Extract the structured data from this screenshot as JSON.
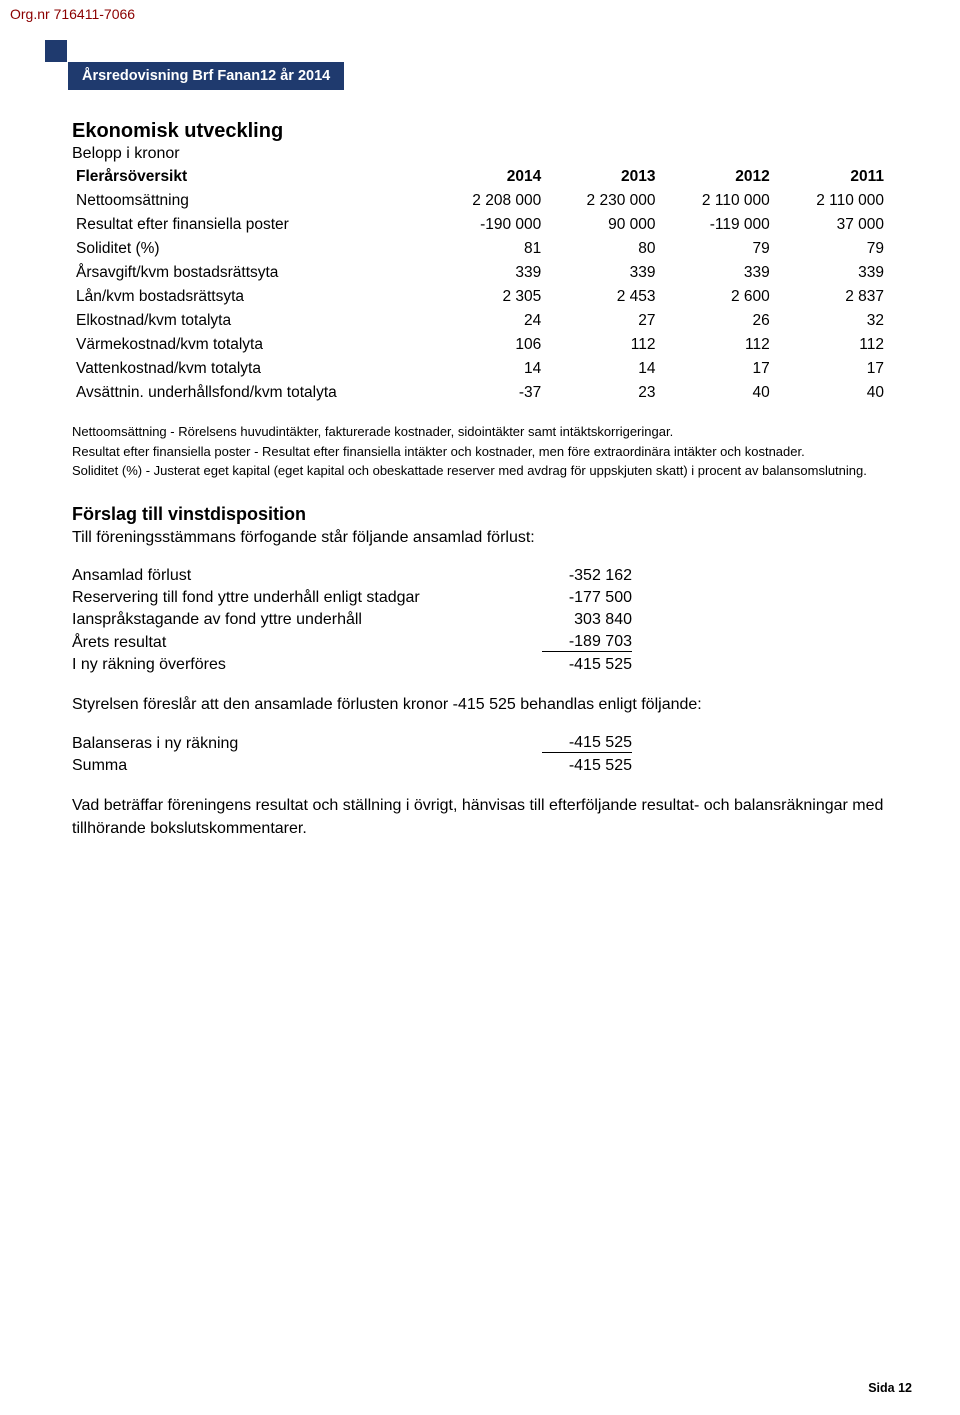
{
  "orgnr": "Org.nr 716411-7066",
  "header_title": "Årsredovisning Brf Fanan12 år 2014",
  "section1": {
    "title": "Ekonomisk utveckling",
    "subtitle": "Belopp i kronor",
    "table_title": "Flerårsöversikt",
    "years": [
      "2014",
      "2013",
      "2012",
      "2011"
    ],
    "rows": [
      {
        "label": "Nettoomsättning",
        "v": [
          "2 208 000",
          "2 230 000",
          "2 110 000",
          "2 110 000"
        ]
      },
      {
        "label": "Resultat efter finansiella poster",
        "v": [
          "-190 000",
          "90 000",
          "-119 000",
          "37 000"
        ]
      },
      {
        "label": "Soliditet (%)",
        "v": [
          "81",
          "80",
          "79",
          "79"
        ]
      },
      {
        "label": "Årsavgift/kvm bostadsrättsyta",
        "v": [
          "339",
          "339",
          "339",
          "339"
        ]
      },
      {
        "label": "Lån/kvm bostadsrättsyta",
        "v": [
          "2 305",
          "2 453",
          "2 600",
          "2 837"
        ]
      },
      {
        "label": "Elkostnad/kvm totalyta",
        "v": [
          "24",
          "27",
          "26",
          "32"
        ]
      },
      {
        "label": "Värmekostnad/kvm totalyta",
        "v": [
          "106",
          "112",
          "112",
          "112"
        ]
      },
      {
        "label": "Vattenkostnad/kvm totalyta",
        "v": [
          "14",
          "14",
          "17",
          "17"
        ]
      },
      {
        "label": "Avsättnin. underhållsfond/kvm totalyta",
        "v": [
          "-37",
          "23",
          "40",
          "40"
        ]
      }
    ]
  },
  "notes": [
    "Nettoomsättning - Rörelsens huvudintäkter, fakturerade kostnader, sidointäkter samt intäktskorrigeringar.",
    "Resultat efter finansiella poster - Resultat efter finansiella intäkter och kostnader, men före extraordinära intäkter och kostnader.",
    "Soliditet (%) - Justerat eget kapital (eget kapital och obeskattade reserver med avdrag för uppskjuten skatt) i procent av balansomslutning."
  ],
  "section2": {
    "title": "Förslag till vinstdisposition",
    "intro": "Till föreningsstämmans förfogande står följande ansamlad förlust:",
    "table1": [
      {
        "label": "Ansamlad förlust",
        "value": "-352 162",
        "underline": false
      },
      {
        "label": "Reservering till fond yttre underhåll enligt stadgar",
        "value": "-177 500",
        "underline": false,
        "wrap": true
      },
      {
        "label": "Ianspråkstagande av fond yttre underhåll",
        "value": "303 840",
        "underline": false
      },
      {
        "label": "Årets resultat",
        "value": "-189 703",
        "underline": true
      },
      {
        "label": "I ny räkning överföres",
        "value": "-415 525",
        "underline": false
      }
    ],
    "mid_text": "Styrelsen föreslår att den ansamlade förlusten kronor -415 525 behandlas enligt följande:",
    "table2": [
      {
        "label": "Balanseras i ny räkning",
        "value": "-415 525",
        "underline": true
      },
      {
        "label": "Summa",
        "value": "-415 525",
        "underline": false
      }
    ],
    "outro": "Vad beträffar föreningens resultat och ställning i övrigt, hänvisas till efterföljande resultat- och balansräkningar med tillhörande bokslutskommentarer."
  },
  "page_number": "Sida 12"
}
